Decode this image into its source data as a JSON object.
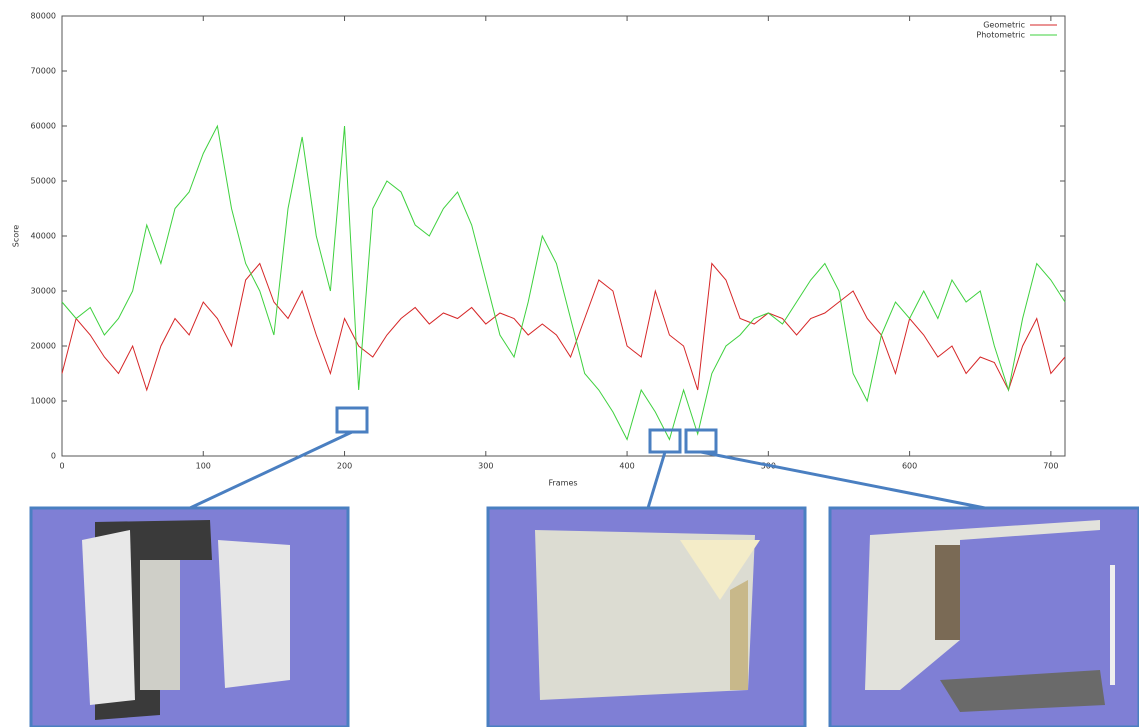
{
  "chart_data": {
    "type": "line",
    "x_label": "Frames",
    "y_label": "Score",
    "x": [
      0,
      10,
      20,
      30,
      40,
      50,
      60,
      70,
      80,
      90,
      100,
      110,
      120,
      130,
      140,
      150,
      160,
      170,
      180,
      190,
      200,
      210,
      220,
      230,
      240,
      250,
      260,
      270,
      280,
      290,
      300,
      310,
      320,
      330,
      340,
      350,
      360,
      370,
      380,
      390,
      400,
      410,
      420,
      430,
      440,
      450,
      460,
      470,
      480,
      490,
      500,
      510,
      520,
      530,
      540,
      550,
      560,
      570,
      580,
      590,
      600,
      610,
      620,
      630,
      640,
      650,
      660,
      670,
      680,
      690,
      700,
      710
    ],
    "series": [
      {
        "name": "Geometric",
        "color": "#d62728",
        "values": [
          15000,
          25000,
          22000,
          18000,
          15000,
          20000,
          12000,
          20000,
          25000,
          22000,
          28000,
          25000,
          20000,
          32000,
          35000,
          28000,
          25000,
          30000,
          22000,
          15000,
          25000,
          20000,
          18000,
          22000,
          25000,
          27000,
          24000,
          26000,
          25000,
          27000,
          24000,
          26000,
          25000,
          22000,
          24000,
          22000,
          18000,
          25000,
          32000,
          30000,
          20000,
          18000,
          30000,
          22000,
          20000,
          12000,
          35000,
          32000,
          25000,
          24000,
          26000,
          25000,
          22000,
          25000,
          26000,
          28000,
          30000,
          25000,
          22000,
          15000,
          25000,
          22000,
          18000,
          20000,
          15000,
          18000,
          17000,
          12000,
          20000,
          25000,
          15000,
          18000
        ]
      },
      {
        "name": "Photometric",
        "color": "#3fd13f",
        "values": [
          28000,
          25000,
          27000,
          22000,
          25000,
          30000,
          42000,
          35000,
          45000,
          48000,
          55000,
          60000,
          45000,
          35000,
          30000,
          22000,
          45000,
          58000,
          40000,
          30000,
          60000,
          12000,
          45000,
          50000,
          48000,
          42000,
          40000,
          45000,
          48000,
          42000,
          32000,
          22000,
          18000,
          28000,
          40000,
          35000,
          25000,
          15000,
          12000,
          8000,
          3000,
          12000,
          8000,
          3000,
          12000,
          4000,
          15000,
          20000,
          22000,
          25000,
          26000,
          24000,
          28000,
          32000,
          35000,
          30000,
          15000,
          10000,
          22000,
          28000,
          25000,
          30000,
          25000,
          32000,
          28000,
          30000,
          20000,
          12000,
          25000,
          35000,
          32000,
          28000
        ]
      }
    ],
    "xlim": [
      0,
      710
    ],
    "ylim": [
      0,
      80000
    ],
    "xticks": [
      0,
      100,
      200,
      300,
      400,
      500,
      600,
      700
    ],
    "yticks": [
      0,
      10000,
      20000,
      30000,
      40000,
      50000,
      60000,
      70000,
      80000
    ],
    "legend": "upper right"
  }
}
